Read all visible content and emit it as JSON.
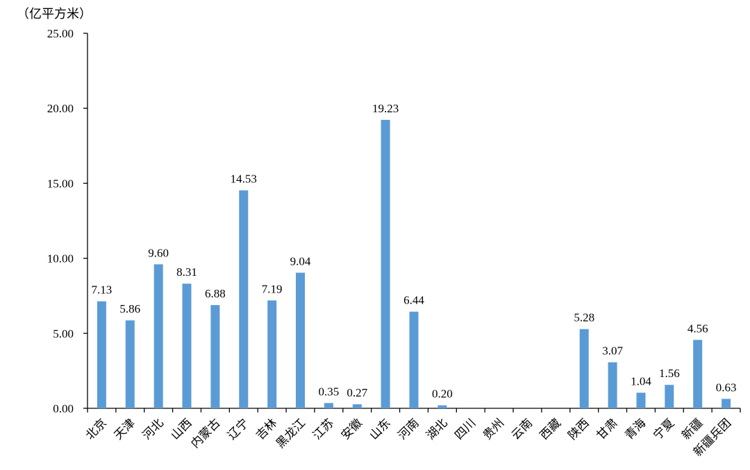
{
  "chart_data": {
    "type": "bar",
    "unit_label": "（亿平方米）",
    "title": "",
    "xlabel": "",
    "ylabel": "",
    "ylim": [
      0,
      25
    ],
    "yticks": [
      "0.00",
      "5.00",
      "10.00",
      "15.00",
      "20.00",
      "25.00"
    ],
    "grid": false,
    "bar_color": "#5B9BD5",
    "categories": [
      "北京",
      "天津",
      "河北",
      "山西",
      "内蒙古",
      "辽宁",
      "吉林",
      "黑龙江",
      "江苏",
      "安徽",
      "山东",
      "河南",
      "湖北",
      "四川",
      "贵州",
      "云南",
      "西藏",
      "陕西",
      "甘肃",
      "青海",
      "宁夏",
      "新疆",
      "新疆兵团"
    ],
    "values": [
      7.13,
      5.86,
      9.6,
      8.31,
      6.88,
      14.53,
      7.19,
      9.04,
      0.35,
      0.27,
      19.23,
      6.44,
      0.2,
      null,
      null,
      null,
      null,
      5.28,
      3.07,
      1.04,
      1.56,
      4.56,
      0.63
    ],
    "data_labels": [
      "7.13",
      "5.86",
      "9.60",
      "8.31",
      "6.88",
      "14.53",
      "7.19",
      "9.04",
      "0.35",
      "0.27",
      "19.23",
      "6.44",
      "0.20",
      "",
      "",
      "",
      "",
      "5.28",
      "3.07",
      "1.04",
      "1.56",
      "4.56",
      "0.63"
    ]
  }
}
